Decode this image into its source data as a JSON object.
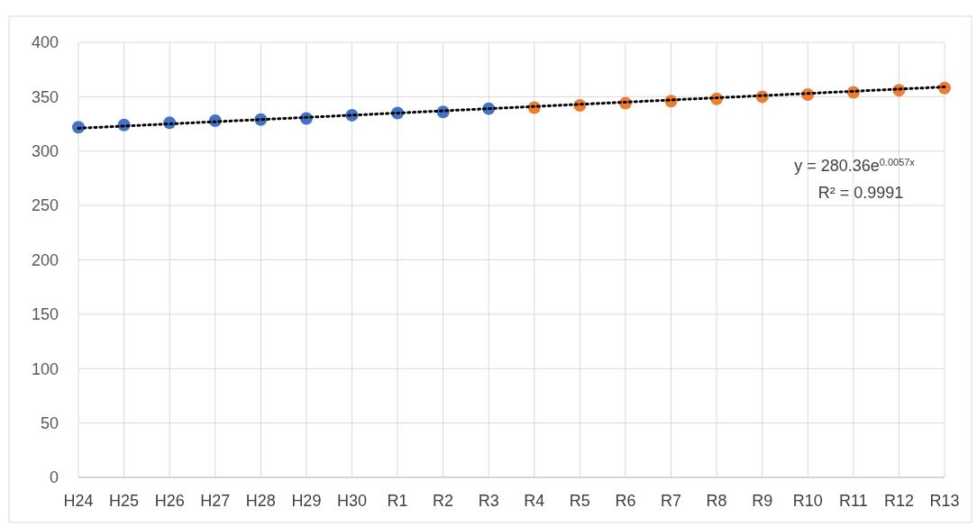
{
  "chart_data": {
    "type": "scatter",
    "categories": [
      "H24",
      "H25",
      "H26",
      "H27",
      "H28",
      "H29",
      "H30",
      "R1",
      "R2",
      "R3",
      "R4",
      "R5",
      "R6",
      "R7",
      "R8",
      "R9",
      "R10",
      "R11",
      "R12",
      "R13"
    ],
    "series": [
      {
        "color": "#4472c4",
        "values": [
          322,
          324,
          326,
          328,
          329,
          330,
          333,
          335,
          336,
          339,
          null,
          null,
          null,
          null,
          null,
          null,
          null,
          null,
          null,
          null
        ]
      },
      {
        "color": "#ed7d31",
        "values": [
          null,
          null,
          null,
          null,
          null,
          null,
          null,
          null,
          null,
          null,
          340,
          342,
          344,
          346,
          348,
          350,
          352,
          354,
          356,
          358
        ]
      },
      {
        "type": "line",
        "color": "#000000",
        "line_style": "dotted",
        "marker": "none",
        "x": [
          "H24",
          "R13"
        ],
        "values": [
          321,
          359
        ]
      }
    ],
    "marker": "circle",
    "ylim": [
      0,
      400
    ],
    "yticks": [
      0,
      50,
      100,
      150,
      200,
      250,
      300,
      350,
      400
    ],
    "grid": true,
    "annotations": [
      "y = 280.36e$^{0.0057x}$",
      "R² = 0.9991"
    ]
  }
}
